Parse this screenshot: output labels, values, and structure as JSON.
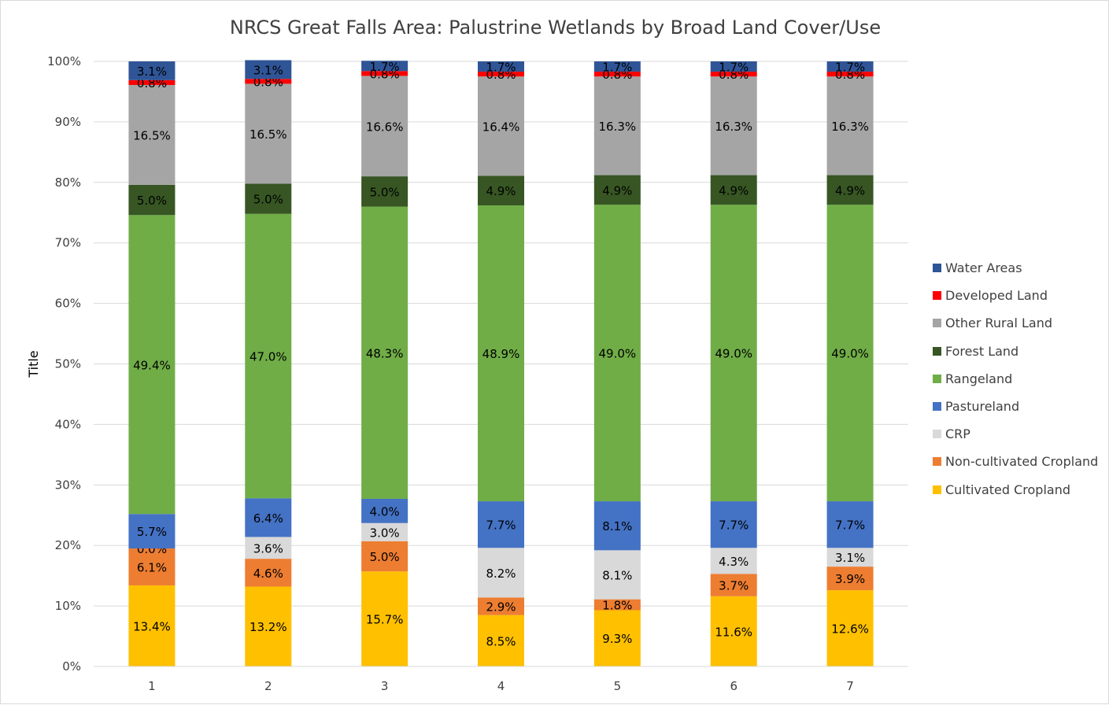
{
  "chart_data": {
    "type": "bar",
    "stacked": "percent",
    "title": "NRCS Great Falls Area: Palustrine Wetlands by Broad Land Cover/Use",
    "xlabel": "",
    "ylabel": "Title",
    "ylim": [
      0,
      100
    ],
    "ytick_labels": [
      "0%",
      "10%",
      "20%",
      "30%",
      "40%",
      "50%",
      "60%",
      "70%",
      "80%",
      "90%",
      "100%"
    ],
    "categories": [
      "1",
      "2",
      "3",
      "4",
      "5",
      "6",
      "7"
    ],
    "grid": "horizontal",
    "legend_position": "right",
    "series": [
      {
        "name": "Cultivated Cropland",
        "color": "#ffc000",
        "values": [
          13.4,
          13.2,
          15.7,
          8.5,
          9.3,
          11.6,
          12.6
        ],
        "labels": [
          "13.4%",
          "13.2%",
          "15.7%",
          "8.5%",
          "9.3%",
          "11.6%",
          "12.6%"
        ]
      },
      {
        "name": "Non-cultivated Cropland",
        "color": "#ed7d31",
        "values": [
          6.1,
          4.6,
          5.0,
          2.9,
          1.8,
          3.7,
          3.9
        ],
        "labels": [
          "6.1%",
          "4.6%",
          "5.0%",
          "2.9%",
          "1.8%",
          "3.7%",
          "3.9%"
        ]
      },
      {
        "name": "CRP",
        "color": "#d9d9d9",
        "values": [
          0.0,
          3.6,
          3.0,
          8.2,
          8.1,
          4.3,
          3.1
        ],
        "labels": [
          "0.0%",
          "3.6%",
          "3.0%",
          "8.2%",
          "8.1%",
          "4.3%",
          "3.1%"
        ]
      },
      {
        "name": "Pastureland",
        "color": "#4472c4",
        "values": [
          5.7,
          6.4,
          4.0,
          7.7,
          8.1,
          7.7,
          7.7
        ],
        "labels": [
          "5.7%",
          "6.4%",
          "4.0%",
          "7.7%",
          "8.1%",
          "7.7%",
          "7.7%"
        ]
      },
      {
        "name": "Rangeland",
        "color": "#70ad47",
        "values": [
          49.4,
          47.0,
          48.3,
          48.9,
          49.0,
          49.0,
          49.0
        ],
        "labels": [
          "49.4%",
          "47.0%",
          "48.3%",
          "48.9%",
          "49.0%",
          "49.0%",
          "49.0%"
        ]
      },
      {
        "name": "Forest Land",
        "color": "#375623",
        "values": [
          5.0,
          5.0,
          5.0,
          4.9,
          4.9,
          4.9,
          4.9
        ],
        "labels": [
          "5.0%",
          "5.0%",
          "5.0%",
          "4.9%",
          "4.9%",
          "4.9%",
          "4.9%"
        ]
      },
      {
        "name": "Other Rural Land",
        "color": "#a5a5a5",
        "values": [
          16.5,
          16.5,
          16.6,
          16.4,
          16.3,
          16.3,
          16.3
        ],
        "labels": [
          "16.5%",
          "16.5%",
          "16.6%",
          "16.4%",
          "16.3%",
          "16.3%",
          "16.3%"
        ]
      },
      {
        "name": "Developed Land",
        "color": "#ff0000",
        "values": [
          0.8,
          0.8,
          0.8,
          0.8,
          0.8,
          0.8,
          0.8
        ],
        "labels": [
          "0.8%",
          "0.8%",
          "0.8%",
          "0.8%",
          "0.8%",
          "0.8%",
          "0.8%"
        ]
      },
      {
        "name": "Water Areas",
        "color": "#2f5597",
        "values": [
          3.1,
          3.1,
          1.7,
          1.7,
          1.7,
          1.7,
          1.7
        ],
        "labels": [
          "3.1%",
          "3.1%",
          "1.7%",
          "1.7%",
          "1.7%",
          "1.7%",
          "1.7%"
        ]
      }
    ]
  }
}
